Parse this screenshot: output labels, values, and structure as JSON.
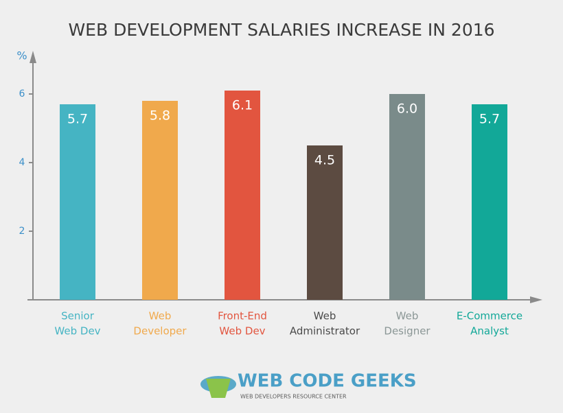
{
  "chart_data": {
    "type": "bar",
    "title": "WEB DEVELOPMENT SALARIES INCREASE IN 2016",
    "y_label": "%",
    "categories": [
      [
        "Senior",
        "Web Dev"
      ],
      [
        "Web",
        "Developer"
      ],
      [
        "Front-End",
        "Web Dev"
      ],
      [
        "Web",
        "Administrator"
      ],
      [
        "Web",
        "Designer"
      ],
      [
        "E-Commerce",
        "Analyst"
      ]
    ],
    "values": [
      5.7,
      5.8,
      6.1,
      4.5,
      6.0,
      5.7
    ],
    "value_labels": [
      "5.7",
      "5.8",
      "6.1",
      "4.5",
      "6.0",
      "5.7"
    ],
    "colors": [
      "#45b4c3",
      "#f0a94c",
      "#e2553f",
      "#5c4b41",
      "#7a8b8a",
      "#12a898"
    ],
    "label_colors": [
      "#45b4c3",
      "#f0a94c",
      "#e2553f",
      "#4a4a4a",
      "#8a9695",
      "#12a898"
    ],
    "ylim": [
      0,
      7.2
    ],
    "yticks": [
      2,
      4,
      6
    ],
    "grid": false
  },
  "logo": {
    "name": "WEB CODE GEEKS",
    "tagline": "WEB DEVELOPERS RESOURCE CENTER"
  }
}
